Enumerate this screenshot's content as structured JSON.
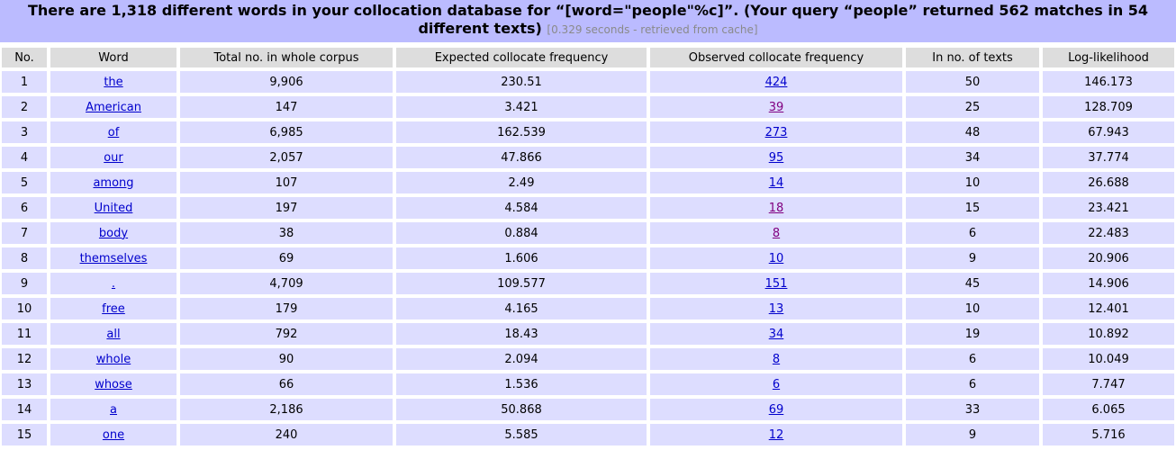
{
  "header": {
    "title": "There are 1,318 different words in your collocation database for “[word=\"people\"%c]”. (Your query “people” returned 562 matches in 54 different texts)",
    "meta": "[0.329 seconds - retrieved from cache]"
  },
  "table": {
    "columns": [
      "No.",
      "Word",
      "Total no. in whole corpus",
      "Expected collocate frequency",
      "Observed collocate frequency",
      "In no. of texts",
      "Log-likelihood"
    ],
    "rows": [
      {
        "no": "1",
        "word": "the",
        "total": "9,906",
        "expected": "230.51",
        "observed": "424",
        "observed_visited": false,
        "texts": "50",
        "ll": "146.173"
      },
      {
        "no": "2",
        "word": "American",
        "total": "147",
        "expected": "3.421",
        "observed": "39",
        "observed_visited": true,
        "texts": "25",
        "ll": "128.709"
      },
      {
        "no": "3",
        "word": "of",
        "total": "6,985",
        "expected": "162.539",
        "observed": "273",
        "observed_visited": false,
        "texts": "48",
        "ll": "67.943"
      },
      {
        "no": "4",
        "word": "our",
        "total": "2,057",
        "expected": "47.866",
        "observed": "95",
        "observed_visited": false,
        "texts": "34",
        "ll": "37.774"
      },
      {
        "no": "5",
        "word": "among",
        "total": "107",
        "expected": "2.49",
        "observed": "14",
        "observed_visited": false,
        "texts": "10",
        "ll": "26.688"
      },
      {
        "no": "6",
        "word": "United",
        "total": "197",
        "expected": "4.584",
        "observed": "18",
        "observed_visited": true,
        "texts": "15",
        "ll": "23.421"
      },
      {
        "no": "7",
        "word": "body",
        "total": "38",
        "expected": "0.884",
        "observed": "8",
        "observed_visited": true,
        "texts": "6",
        "ll": "22.483"
      },
      {
        "no": "8",
        "word": "themselves",
        "total": "69",
        "expected": "1.606",
        "observed": "10",
        "observed_visited": false,
        "texts": "9",
        "ll": "20.906"
      },
      {
        "no": "9",
        "word": ".",
        "total": "4,709",
        "expected": "109.577",
        "observed": "151",
        "observed_visited": false,
        "texts": "45",
        "ll": "14.906"
      },
      {
        "no": "10",
        "word": "free",
        "total": "179",
        "expected": "4.165",
        "observed": "13",
        "observed_visited": false,
        "texts": "10",
        "ll": "12.401"
      },
      {
        "no": "11",
        "word": "all",
        "total": "792",
        "expected": "18.43",
        "observed": "34",
        "observed_visited": false,
        "texts": "19",
        "ll": "10.892"
      },
      {
        "no": "12",
        "word": "whole",
        "total": "90",
        "expected": "2.094",
        "observed": "8",
        "observed_visited": false,
        "texts": "6",
        "ll": "10.049"
      },
      {
        "no": "13",
        "word": "whose",
        "total": "66",
        "expected": "1.536",
        "observed": "6",
        "observed_visited": false,
        "texts": "6",
        "ll": "7.747"
      },
      {
        "no": "14",
        "word": "a",
        "total": "2,186",
        "expected": "50.868",
        "observed": "69",
        "observed_visited": false,
        "texts": "33",
        "ll": "6.065"
      },
      {
        "no": "15",
        "word": "one",
        "total": "240",
        "expected": "5.585",
        "observed": "12",
        "observed_visited": false,
        "texts": "9",
        "ll": "5.716"
      }
    ]
  },
  "colors": {
    "title_background": "#bbbbff",
    "header_cell": "#dddddd",
    "data_cell": "#ddddff",
    "link": "#0000cc",
    "visited_link": "#800080",
    "meta_text": "#8a8a8a"
  }
}
